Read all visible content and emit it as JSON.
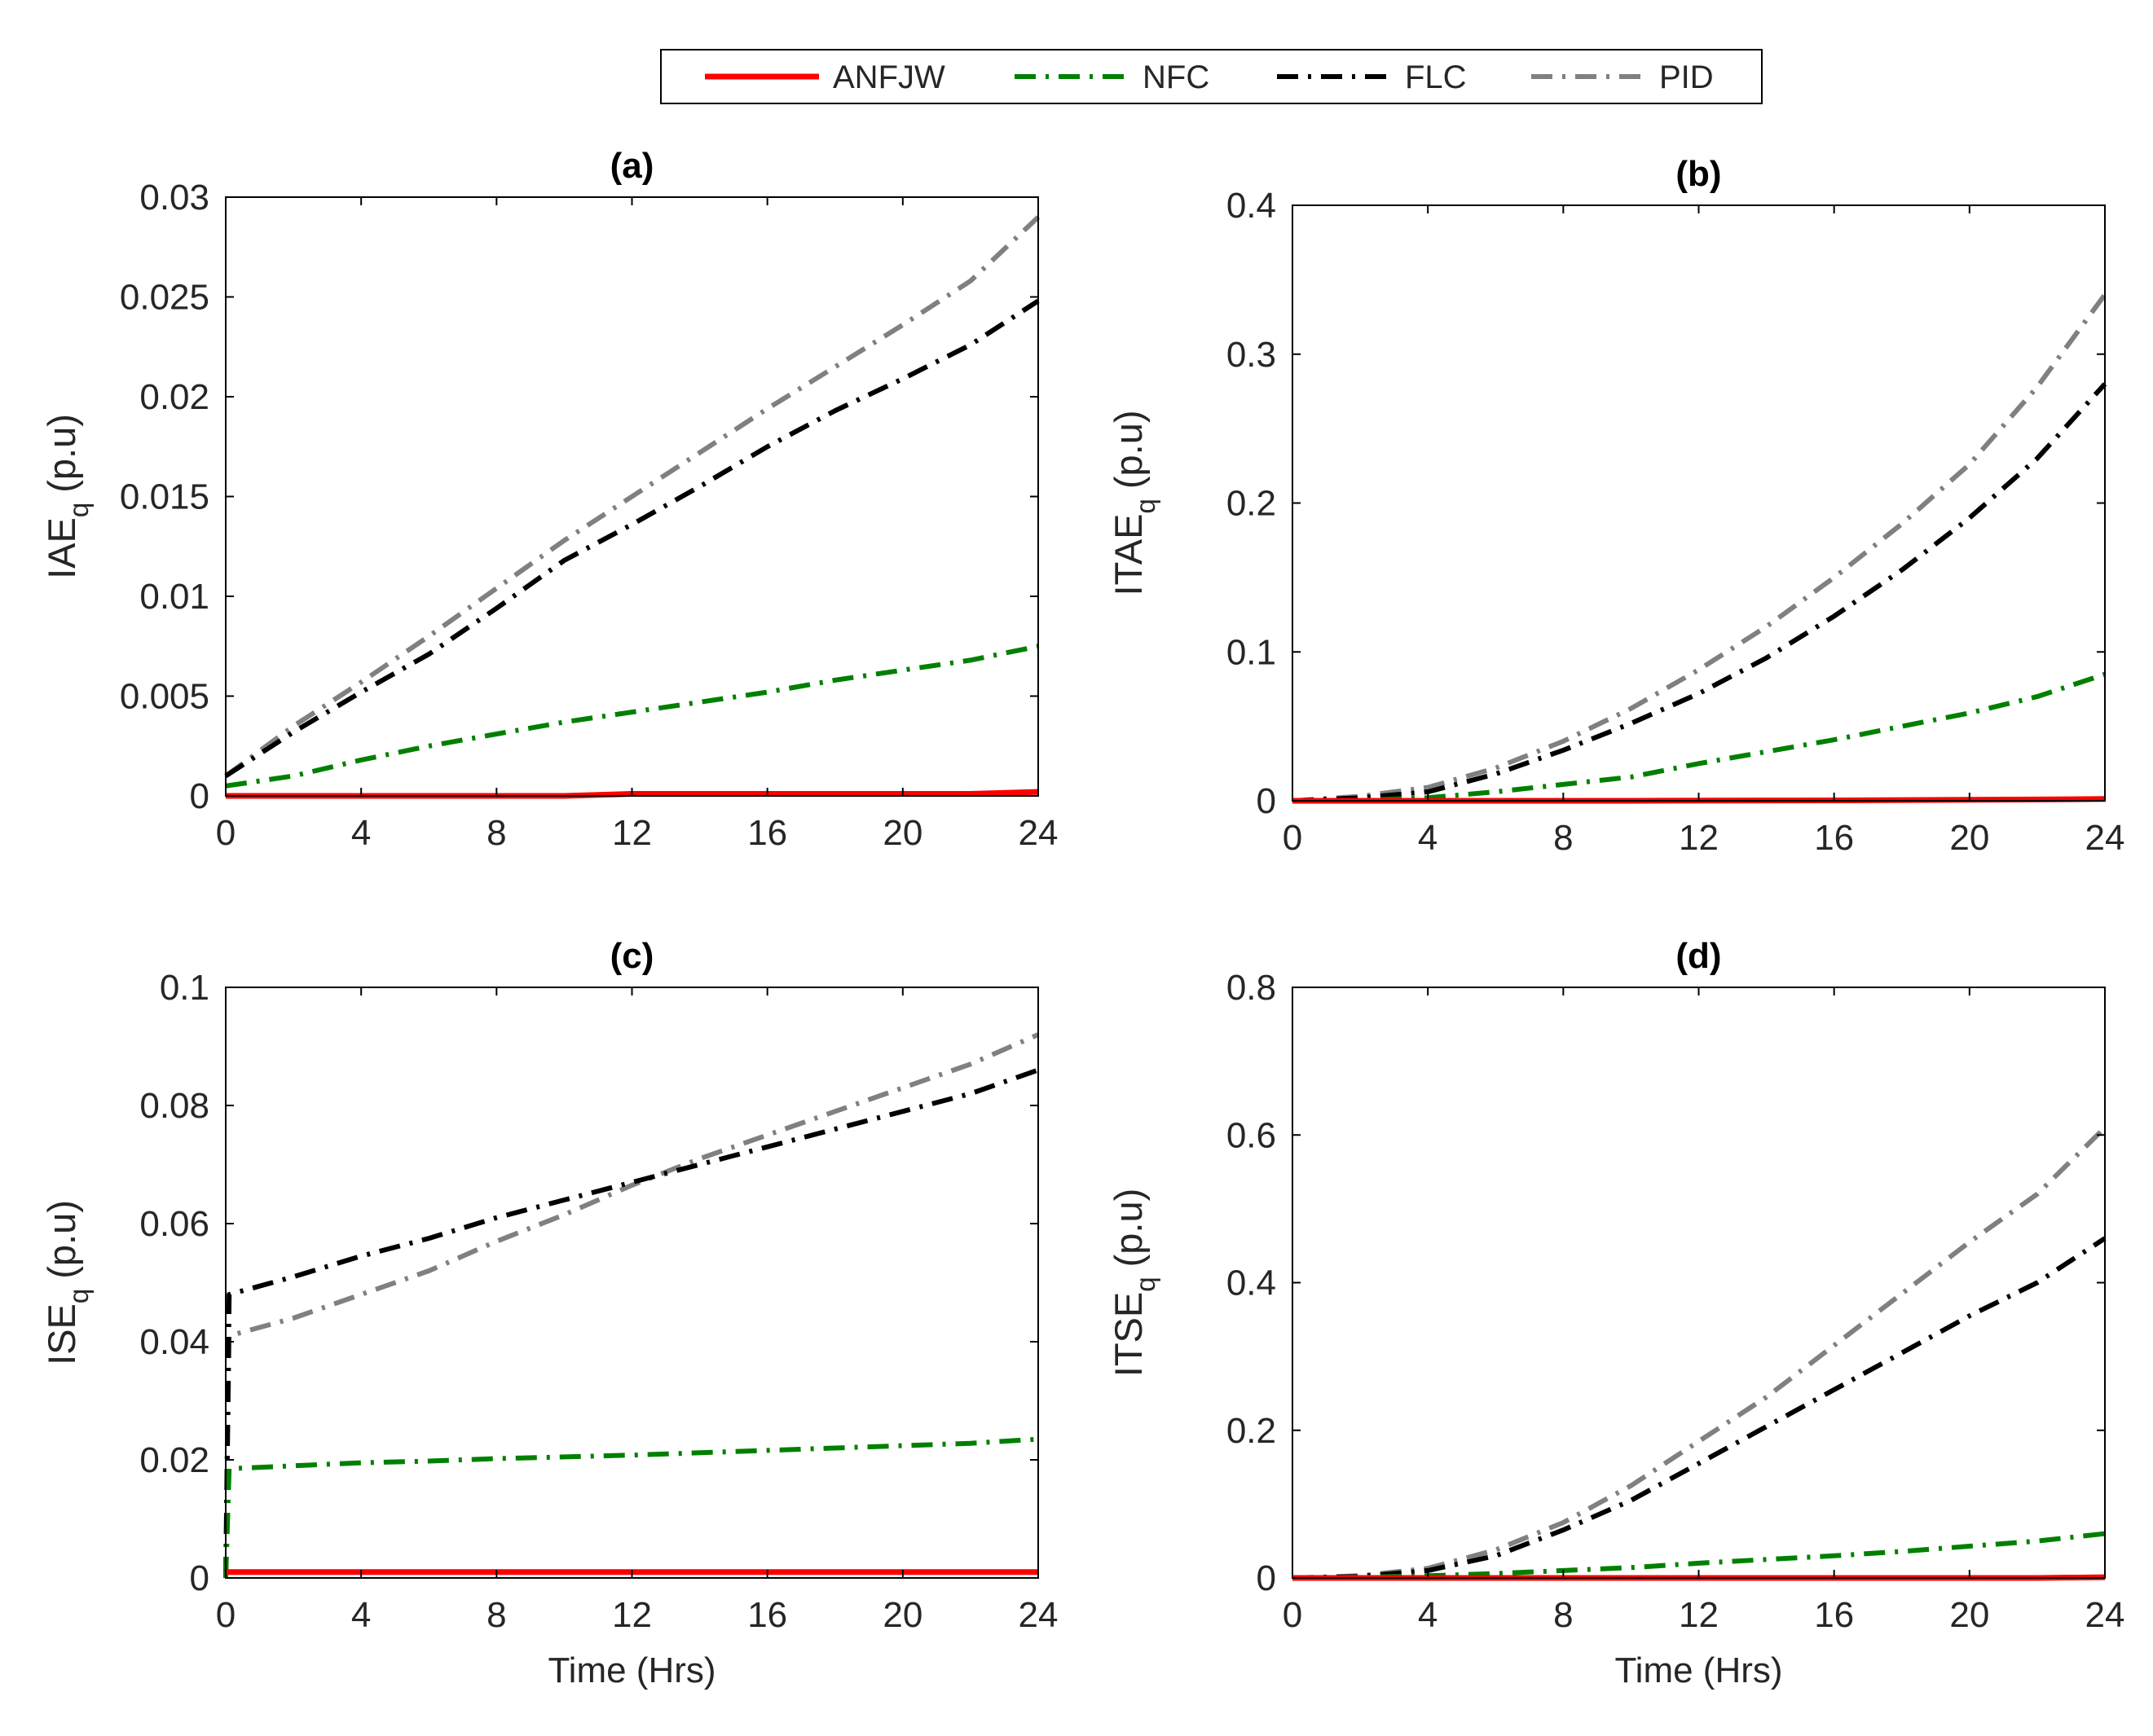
{
  "legend": {
    "entries": [
      "ANFJW",
      "NFC",
      "FLC",
      "PID"
    ],
    "location": "top-center"
  },
  "series_colors": {
    "ANFJW": "#ff0000",
    "NFC": "#008000",
    "FLC": "#000000",
    "PID": "#808080"
  },
  "series_styles": {
    "ANFJW": "solid",
    "NFC": "dash-dot",
    "FLC": "dash-dot",
    "PID": "dash-dot"
  },
  "chart_data": [
    {
      "type": "line",
      "title": "(a)",
      "ylabel": "IAE",
      "ylabel_subscript": "q",
      "ylabel_unit": "(p.u)",
      "xlabel": "",
      "xlim": [
        0,
        24
      ],
      "ylim": [
        0,
        0.03
      ],
      "xticks": [
        "0",
        "4",
        "8",
        "12",
        "16",
        "20",
        "24"
      ],
      "yticks": [
        "0",
        "0.005",
        "0.01",
        "0.015",
        "0.02",
        "0.025",
        "0.03"
      ],
      "x": [
        0,
        2,
        4,
        6,
        8,
        10,
        12,
        14,
        16,
        18,
        20,
        22,
        24
      ],
      "series": [
        {
          "name": "ANFJW",
          "values": [
            0.0,
            0.0,
            0.0,
            0.0,
            0.0,
            0.0,
            0.0001,
            0.0001,
            0.0001,
            0.0001,
            0.0001,
            0.0001,
            0.0002
          ]
        },
        {
          "name": "NFC",
          "values": [
            0.0005,
            0.001,
            0.0018,
            0.0025,
            0.0031,
            0.0037,
            0.0042,
            0.0047,
            0.0052,
            0.0058,
            0.0063,
            0.0068,
            0.0075
          ]
        },
        {
          "name": "FLC",
          "values": [
            0.001,
            0.0032,
            0.0052,
            0.0071,
            0.0094,
            0.0118,
            0.0136,
            0.0155,
            0.0175,
            0.0193,
            0.0209,
            0.0226,
            0.0248
          ]
        },
        {
          "name": "PID",
          "values": [
            0.001,
            0.0035,
            0.0057,
            0.008,
            0.0104,
            0.0128,
            0.015,
            0.0172,
            0.0194,
            0.0215,
            0.0236,
            0.0258,
            0.029
          ]
        }
      ],
      "grid": false
    },
    {
      "type": "line",
      "title": "(b)",
      "ylabel": "ITAE",
      "ylabel_subscript": "q",
      "ylabel_unit": "(p.u)",
      "xlabel": "",
      "xlim": [
        0,
        24
      ],
      "ylim": [
        0,
        0.4
      ],
      "xticks": [
        "0",
        "4",
        "8",
        "12",
        "16",
        "20",
        "24"
      ],
      "yticks": [
        "0",
        "0.1",
        "0.2",
        "0.3",
        "0.4"
      ],
      "x": [
        0,
        2,
        4,
        6,
        8,
        10,
        12,
        14,
        16,
        18,
        20,
        22,
        24
      ],
      "series": [
        {
          "name": "ANFJW",
          "values": [
            0,
            0,
            0,
            0,
            0,
            0,
            0.0001,
            0.0002,
            0.0003,
            0.0005,
            0.0007,
            0.0009,
            0.0012
          ]
        },
        {
          "name": "NFC",
          "values": [
            0,
            0.0003,
            0.002,
            0.006,
            0.011,
            0.016,
            0.025,
            0.033,
            0.041,
            0.05,
            0.059,
            0.07,
            0.085
          ]
        },
        {
          "name": "FLC",
          "values": [
            0,
            0.002,
            0.006,
            0.018,
            0.034,
            0.052,
            0.072,
            0.096,
            0.124,
            0.155,
            0.19,
            0.23,
            0.28
          ]
        },
        {
          "name": "PID",
          "values": [
            0,
            0.003,
            0.009,
            0.022,
            0.04,
            0.062,
            0.088,
            0.117,
            0.15,
            0.186,
            0.226,
            0.278,
            0.34
          ]
        }
      ],
      "grid": false
    },
    {
      "type": "line",
      "title": "(c)",
      "ylabel": "ISE",
      "ylabel_subscript": "q",
      "ylabel_unit": "(p.u)",
      "xlabel": "Time (Hrs)",
      "xlim": [
        0,
        24
      ],
      "ylim": [
        0,
        0.1
      ],
      "xticks": [
        "0",
        "4",
        "8",
        "12",
        "16",
        "20",
        "24"
      ],
      "yticks": [
        "0",
        "0.02",
        "0.04",
        "0.06",
        "0.08",
        "0.1"
      ],
      "x": [
        0,
        0.1,
        2,
        4,
        6,
        8,
        10,
        12,
        14,
        16,
        18,
        20,
        22,
        24
      ],
      "series": [
        {
          "name": "ANFJW",
          "values": [
            0.001,
            0.001,
            0.001,
            0.001,
            0.001,
            0.001,
            0.001,
            0.001,
            0.001,
            0.001,
            0.001,
            0.001,
            0.001,
            0.001
          ]
        },
        {
          "name": "NFC",
          "values": [
            0.0,
            0.0185,
            0.019,
            0.0195,
            0.0198,
            0.0202,
            0.0205,
            0.0208,
            0.0212,
            0.0216,
            0.022,
            0.0224,
            0.0228,
            0.0235
          ]
        },
        {
          "name": "FLC",
          "values": [
            0.0,
            0.048,
            0.051,
            0.0545,
            0.0575,
            0.061,
            0.064,
            0.067,
            0.07,
            0.073,
            0.076,
            0.079,
            0.082,
            0.086
          ]
        },
        {
          "name": "PID",
          "values": [
            0.0,
            0.041,
            0.044,
            0.048,
            0.052,
            0.057,
            0.0615,
            0.0665,
            0.071,
            0.075,
            0.079,
            0.083,
            0.087,
            0.092
          ]
        }
      ],
      "grid": false
    },
    {
      "type": "line",
      "title": "(d)",
      "ylabel": "ITSE",
      "ylabel_subscript": "q",
      "ylabel_unit": "(p.u)",
      "xlabel": "Time (Hrs)",
      "xlim": [
        0,
        24
      ],
      "ylim": [
        0,
        0.8
      ],
      "xticks": [
        "0",
        "4",
        "8",
        "12",
        "16",
        "20",
        "24"
      ],
      "yticks": [
        "0",
        "0.2",
        "0.4",
        "0.6",
        "0.8"
      ],
      "x": [
        0,
        2,
        4,
        6,
        8,
        10,
        12,
        14,
        16,
        18,
        20,
        22,
        24
      ],
      "series": [
        {
          "name": "ANFJW",
          "values": [
            0,
            0,
            0,
            0,
            0,
            0,
            0,
            0,
            0,
            0,
            0,
            0,
            0.001
          ]
        },
        {
          "name": "NFC",
          "values": [
            0,
            0.001,
            0.003,
            0.006,
            0.01,
            0.014,
            0.02,
            0.025,
            0.03,
            0.036,
            0.043,
            0.05,
            0.06
          ]
        },
        {
          "name": "FLC",
          "values": [
            0,
            0.002,
            0.01,
            0.03,
            0.065,
            0.105,
            0.155,
            0.205,
            0.255,
            0.305,
            0.355,
            0.4,
            0.46
          ]
        },
        {
          "name": "PID",
          "values": [
            0,
            0.003,
            0.013,
            0.038,
            0.075,
            0.125,
            0.185,
            0.245,
            0.315,
            0.385,
            0.455,
            0.52,
            0.61
          ]
        }
      ],
      "grid": false
    }
  ]
}
